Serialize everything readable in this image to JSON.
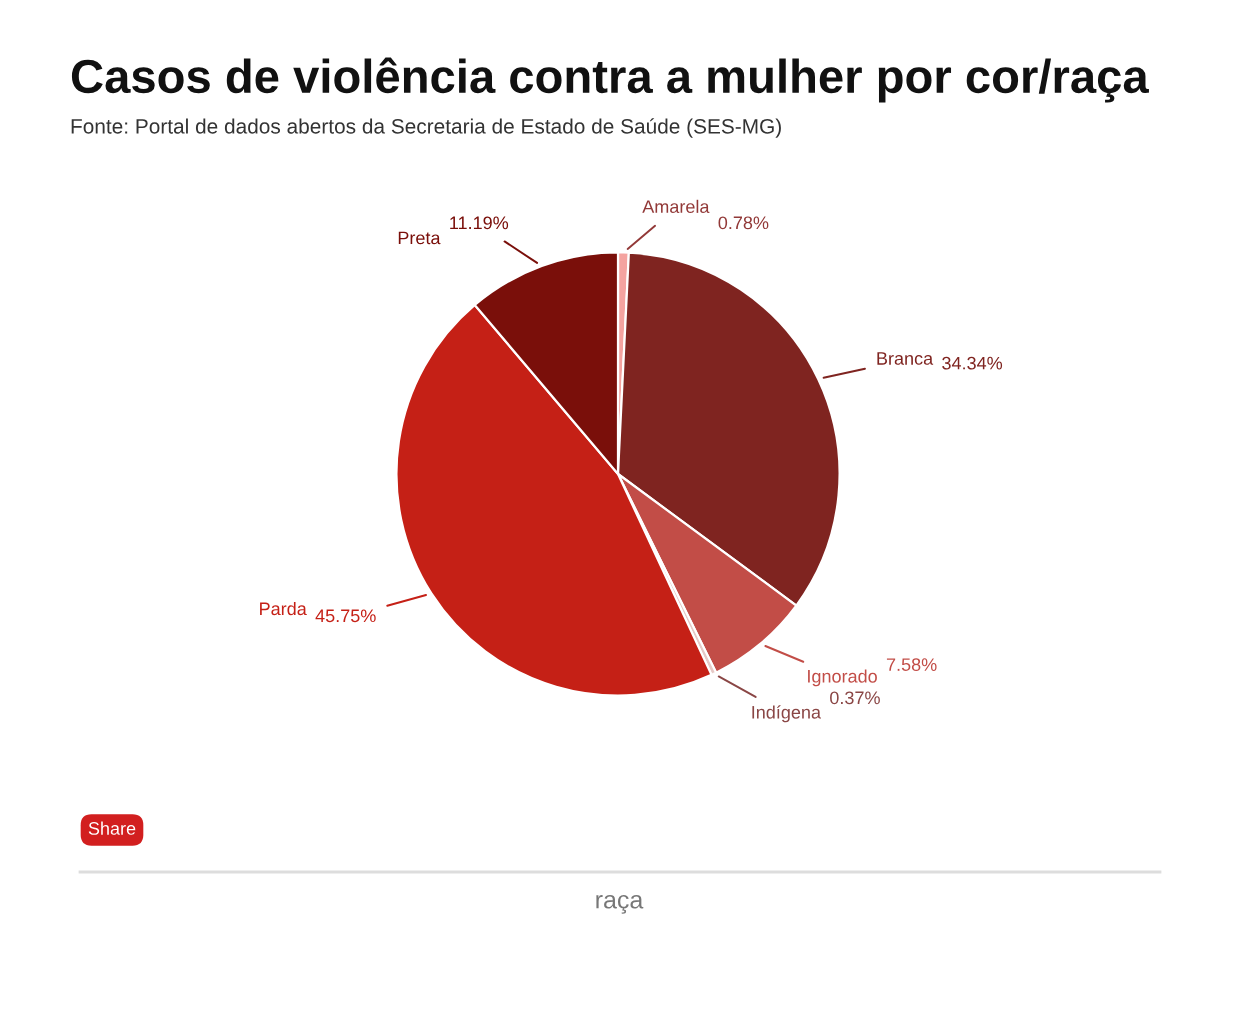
{
  "chart_data": {
    "type": "pie",
    "title": "Casos de violência contra a mulher por cor/raça",
    "subtitle": "Fonte: Portal de dados abertos da Secretaria de Estado de Saúde (SES-MG)",
    "categories": [
      "Amarela",
      "Branca",
      "Ignorado",
      "Indígena",
      "Parda",
      "Preta"
    ],
    "values": [
      0.78,
      34.34,
      7.58,
      0.37,
      45.75,
      11.19
    ],
    "colors": [
      "#f4a3a0",
      "#7f2420",
      "#c24d47",
      "#e6c9c6",
      "#c52016",
      "#7a0f0a"
    ],
    "value_labels": [
      "0.78%",
      "34.34%",
      "7.58%",
      "0.37%",
      "45.75%",
      "11.19%"
    ],
    "annotations": [
      "Share",
      "raça"
    ],
    "legend": false
  }
}
